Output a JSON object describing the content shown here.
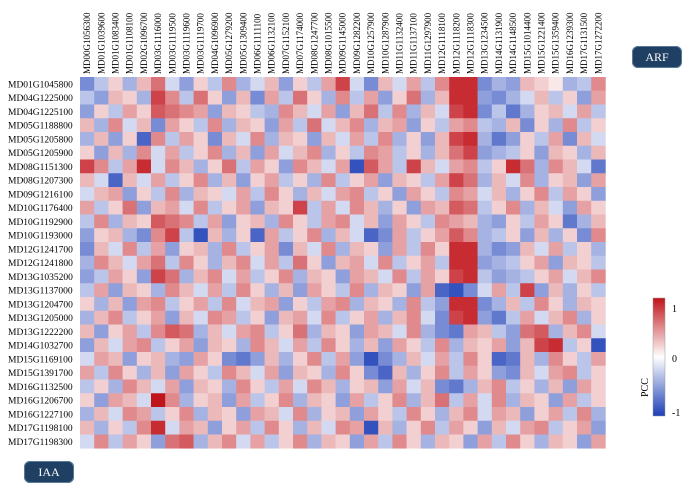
{
  "labels": {
    "arf": "ARF",
    "iaa": "IAA"
  },
  "colors": {
    "negative": "#1d3fb7",
    "zero": "#ffffff",
    "positive": "#c0141b"
  },
  "chart_data": {
    "type": "heatmap",
    "columns": [
      "MD00G1056300",
      "MD01G1039600",
      "MD01G1083400",
      "MD01G1108100",
      "MD02G1096700",
      "MD03G1116000",
      "MD03G1119500",
      "MD03G1119600",
      "MD03G1119700",
      "MD04G1096900",
      "MD05G1279200",
      "MD05G1309400",
      "MD06G1111100",
      "MD06G1132100",
      "MD07G1152100",
      "MD07G1174000",
      "MD08G1247700",
      "MD08G1015500",
      "MD09G1145000",
      "MD09G1282200",
      "MD10G1257900",
      "MD10G1287900",
      "MD11G1132400",
      "MD11G1137100",
      "MD11G1297900",
      "MD12G1118100",
      "MD12G1118200",
      "MD12G1118300",
      "MD13G1234500",
      "MD14G1131900",
      "MD14G1148500",
      "MD15G1014400",
      "MD15G1221400",
      "MD15G1359400",
      "MD16G1239300",
      "MD17G1131500",
      "MD17G1272200"
    ],
    "rows": [
      "MD01G1045800",
      "MD04G1225000",
      "MD04G1225100",
      "MD05G1188800",
      "MD05G1205800",
      "MD05G1205900",
      "MD08G1151300",
      "MD08G1207300",
      "MD09G1216100",
      "MD10G1176400",
      "MD10G1192900",
      "MD10G1193000",
      "MD12G1241700",
      "MD12G1241800",
      "MD13G1035200",
      "MD13G1137000",
      "MD13G1204700",
      "MD13G1205000",
      "MD13G1222200",
      "MD14G1032700",
      "MD15G1169100",
      "MD15G1391700",
      "MD16G1132500",
      "MD16G1206700",
      "MD16G1227100",
      "MD17G1198100",
      "MD17G1198300"
    ],
    "values": [
      [
        -0.6,
        -0.3,
        0.2,
        -0.4,
        0.3,
        0.6,
        -0.2,
        -0.5,
        0.2,
        -0.3,
        0.5,
        -0.4,
        -0.2,
        0.3,
        -0.5,
        0.2,
        -0.3,
        0.4,
        0.8,
        -0.2,
        -0.6,
        0.3,
        -0.2,
        0.4,
        -0.3,
        0.5,
        0.9,
        0.9,
        -0.6,
        -0.4,
        -0.5,
        0.3,
        0.2,
        0.1,
        -0.4,
        -0.3,
        0.5
      ],
      [
        -0.3,
        -0.5,
        0.3,
        0.2,
        -0.4,
        0.8,
        0.5,
        -0.3,
        0.6,
        0.2,
        -0.5,
        0.3,
        -0.6,
        0.4,
        -0.3,
        0.6,
        0.2,
        -0.4,
        0.5,
        -0.3,
        0.4,
        -0.5,
        0.2,
        0.6,
        -0.4,
        0.3,
        0.9,
        0.9,
        -0.5,
        -0.6,
        -0.4,
        -0.2,
        0.3,
        -0.3,
        0.2,
        -0.5,
        0.4
      ],
      [
        -0.5,
        0.2,
        -0.3,
        0.4,
        0.2,
        0.7,
        0.6,
        0.5,
        0.4,
        -0.5,
        0.3,
        0.2,
        -0.3,
        -0.4,
        0.5,
        0.3,
        -0.2,
        0.4,
        -0.5,
        0.3,
        0.6,
        -0.3,
        0.5,
        -0.4,
        0.3,
        -0.2,
        0.8,
        0.9,
        -0.6,
        -0.3,
        -0.7,
        -0.4,
        0.2,
        0.3,
        -0.2,
        0.4,
        -0.3
      ],
      [
        0.3,
        -0.4,
        0.5,
        -0.2,
        0.3,
        -0.6,
        0.4,
        0.2,
        -0.3,
        0.5,
        -0.4,
        0.3,
        0.2,
        -0.5,
        0.4,
        -0.3,
        0.6,
        -0.2,
        0.3,
        0.5,
        -0.4,
        0.3,
        0.4,
        -0.5,
        0.2,
        -0.3,
        0.4,
        0.5,
        -0.3,
        -0.4,
        0.3,
        -0.6,
        0.2,
        -0.4,
        0.5,
        -0.3,
        0.2
      ],
      [
        -0.4,
        0.3,
        -0.5,
        0.2,
        -0.8,
        0.5,
        -0.3,
        0.4,
        0.2,
        -0.6,
        0.3,
        -0.2,
        0.5,
        -0.4,
        0.3,
        0.2,
        -0.5,
        0.3,
        -0.2,
        0.4,
        -0.3,
        0.5,
        -0.4,
        0.2,
        -0.5,
        0.3,
        0.8,
        0.9,
        -0.4,
        -0.7,
        -0.5,
        0.2,
        -0.3,
        0.4,
        -0.6,
        0.3,
        -0.2
      ],
      [
        0.2,
        -0.5,
        0.3,
        -0.4,
        0.5,
        -0.2,
        0.4,
        -0.3,
        0.2,
        0.5,
        -0.4,
        0.3,
        -0.5,
        0.4,
        -0.2,
        0.3,
        0.5,
        -0.4,
        0.2,
        -0.3,
        0.5,
        0.4,
        -0.3,
        0.2,
        -0.4,
        0.3,
        0.6,
        0.8,
        -0.5,
        -0.4,
        -0.3,
        0.2,
        -0.5,
        0.3,
        0.2,
        -0.4,
        0.3
      ],
      [
        0.8,
        0.5,
        -0.3,
        0.4,
        0.9,
        -0.2,
        0.5,
        0.3,
        -0.4,
        0.2,
        0.6,
        -0.3,
        0.4,
        0.2,
        -0.5,
        0.5,
        0.3,
        -0.2,
        0.4,
        -0.9,
        0.7,
        0.4,
        -0.3,
        0.8,
        0.3,
        -0.2,
        0.4,
        0.5,
        -0.3,
        0.2,
        0.9,
        0.6,
        -0.4,
        0.5,
        0.3,
        -0.2,
        -0.7
      ],
      [
        0.3,
        -0.2,
        -0.8,
        0.3,
        -0.2,
        0.4,
        -0.3,
        0.2,
        0.5,
        -0.4,
        0.3,
        -0.5,
        0.2,
        0.4,
        -0.3,
        0.2,
        -0.4,
        0.5,
        -0.3,
        0.2,
        0.4,
        -0.5,
        0.3,
        0.2,
        -0.3,
        0.4,
        0.8,
        0.6,
        -0.4,
        0.3,
        -0.2,
        0.5,
        -0.4,
        0.2,
        0.3,
        -0.5,
        0.4
      ],
      [
        -0.2,
        0.3,
        0.4,
        -0.5,
        0.2,
        -0.3,
        0.5,
        -0.4,
        0.3,
        0.2,
        -0.2,
        0.4,
        -0.3,
        0.5,
        0.2,
        -0.4,
        0.3,
        -0.2,
        0.4,
        0.5,
        -0.3,
        0.2,
        -0.5,
        0.4,
        0.2,
        -0.3,
        0.5,
        0.4,
        -0.2,
        0.3,
        -0.4,
        0.2,
        0.5,
        -0.3,
        0.4,
        0.2,
        -0.5
      ],
      [
        0.4,
        -0.3,
        0.2,
        0.6,
        -0.5,
        0.3,
        0.4,
        -0.2,
        0.5,
        -0.3,
        0.2,
        0.4,
        -0.5,
        0.3,
        0.2,
        0.8,
        -0.3,
        0.4,
        -0.2,
        0.5,
        0.3,
        -0.4,
        0.2,
        -0.5,
        0.4,
        0.3,
        0.7,
        0.6,
        -0.3,
        0.2,
        0.5,
        -0.4,
        0.3,
        -0.2,
        -0.5,
        0.4,
        0.2
      ],
      [
        -0.3,
        0.5,
        -0.4,
        0.3,
        0.2,
        0.7,
        0.6,
        0.5,
        -0.3,
        0.4,
        -0.5,
        0.2,
        0.3,
        -0.4,
        0.5,
        0.2,
        -0.3,
        0.4,
        0.5,
        -0.2,
        0.3,
        -0.5,
        0.4,
        0.2,
        -0.3,
        0.5,
        0.4,
        0.3,
        -0.4,
        -0.5,
        0.2,
        -0.3,
        0.4,
        0.2,
        -0.7,
        -0.4,
        0.3
      ],
      [
        -0.5,
        0.2,
        0.3,
        -0.4,
        -0.6,
        0.5,
        0.8,
        -0.3,
        -0.9,
        0.3,
        -0.4,
        0.2,
        -0.8,
        0.4,
        -0.3,
        0.2,
        0.5,
        -0.4,
        0.3,
        -0.2,
        -0.8,
        -0.6,
        0.4,
        -0.3,
        0.2,
        0.4,
        0.7,
        0.5,
        -0.4,
        -0.3,
        0.2,
        -0.5,
        0.3,
        -0.4,
        0.2,
        -0.6,
        0.5
      ],
      [
        -0.6,
        0.3,
        -0.2,
        0.5,
        -0.3,
        0.4,
        -0.5,
        0.2,
        0.3,
        -0.4,
        0.5,
        -0.3,
        0.2,
        0.4,
        -0.6,
        0.3,
        -0.2,
        0.5,
        -0.4,
        0.3,
        0.2,
        -0.5,
        0.4,
        -0.3,
        0.5,
        0.2,
        0.9,
        0.9,
        -0.4,
        -0.6,
        -0.5,
        0.3,
        -0.2,
        0.4,
        -0.3,
        0.2,
        -0.4
      ],
      [
        -0.4,
        0.5,
        0.3,
        -0.2,
        0.4,
        0.6,
        -0.3,
        0.5,
        0.2,
        -0.4,
        0.3,
        0.5,
        -0.2,
        0.4,
        -0.3,
        0.6,
        0.2,
        -0.5,
        0.3,
        0.4,
        -0.2,
        0.5,
        -0.3,
        0.2,
        0.4,
        -0.3,
        0.9,
        0.9,
        -0.5,
        -0.4,
        -0.3,
        0.2,
        0.4,
        -0.5,
        0.3,
        0.2,
        -0.3
      ],
      [
        -0.5,
        -0.3,
        0.4,
        0.2,
        -0.5,
        0.8,
        0.6,
        -0.4,
        0.3,
        0.5,
        -0.2,
        0.4,
        -0.3,
        0.2,
        0.5,
        -0.4,
        0.3,
        0.2,
        -0.5,
        0.4,
        0.3,
        -0.2,
        0.5,
        -0.3,
        0.4,
        0.2,
        0.8,
        0.9,
        -0.3,
        -0.5,
        -0.4,
        -0.3,
        0.2,
        0.4,
        -0.2,
        0.3,
        0.5
      ],
      [
        -0.3,
        0.4,
        -0.5,
        0.3,
        0.2,
        -0.4,
        0.5,
        0.3,
        -0.2,
        0.4,
        -0.3,
        0.5,
        0.2,
        -0.4,
        0.3,
        -0.5,
        0.4,
        0.2,
        -0.3,
        0.5,
        -0.4,
        0.3,
        0.2,
        -0.5,
        0.4,
        -0.8,
        -0.9,
        -0.6,
        -0.2,
        0.4,
        -0.3,
        0.8,
        -0.5,
        0.3,
        -0.4,
        0.2,
        -0.3
      ],
      [
        0.2,
        -0.4,
        0.3,
        -0.5,
        0.4,
        0.5,
        -0.3,
        0.2,
        0.4,
        -0.3,
        0.5,
        -0.2,
        0.3,
        0.4,
        -0.5,
        0.2,
        -0.3,
        0.4,
        0.5,
        -0.4,
        0.3,
        0.2,
        -0.4,
        0.5,
        -0.3,
        -0.5,
        0.9,
        0.9,
        -0.6,
        -0.4,
        0.3,
        -0.3,
        0.5,
        0.2,
        -0.4,
        0.3,
        0.2
      ],
      [
        -0.4,
        0.3,
        0.5,
        -0.3,
        0.2,
        0.4,
        -0.5,
        0.3,
        -0.2,
        0.5,
        0.4,
        -0.3,
        0.2,
        -0.5,
        0.3,
        0.4,
        -0.2,
        0.5,
        -0.3,
        0.2,
        0.4,
        -0.4,
        0.3,
        0.5,
        -0.2,
        -0.6,
        0.8,
        0.9,
        -0.5,
        -0.7,
        -0.3,
        0.4,
        -0.2,
        0.3,
        0.5,
        -0.4,
        0.2
      ],
      [
        0.3,
        -0.5,
        0.2,
        0.4,
        -0.3,
        0.5,
        0.7,
        0.6,
        -0.4,
        0.3,
        -0.2,
        0.4,
        0.5,
        -0.3,
        0.2,
        0.6,
        -0.4,
        0.3,
        0.2,
        -0.5,
        0.4,
        0.3,
        -0.2,
        0.5,
        -0.4,
        -0.6,
        -0.7,
        0.4,
        0.3,
        -0.3,
        -0.5,
        0.6,
        0.7,
        -0.4,
        0.3,
        0.5,
        -0.2
      ],
      [
        -0.5,
        0.3,
        -0.2,
        0.4,
        0.5,
        -0.3,
        0.2,
        0.4,
        -0.5,
        0.3,
        0.2,
        -0.4,
        0.5,
        0.3,
        -0.2,
        0.4,
        -0.3,
        0.5,
        0.2,
        -0.4,
        0.3,
        -0.5,
        0.4,
        0.2,
        -0.3,
        0.5,
        -0.4,
        0.3,
        0.2,
        0.4,
        -0.5,
        0.3,
        0.8,
        0.9,
        -0.3,
        0.2,
        -0.9
      ],
      [
        -0.2,
        0.4,
        0.3,
        -0.5,
        0.2,
        0.3,
        -0.4,
        -0.5,
        0.4,
        0.2,
        -0.6,
        -0.7,
        -0.5,
        0.3,
        -0.4,
        0.2,
        0.5,
        -0.3,
        0.4,
        -0.5,
        -0.9,
        -0.6,
        -0.4,
        0.3,
        -0.2,
        0.4,
        -0.3,
        0.5,
        0.2,
        -0.8,
        -0.7,
        0.3,
        -0.4,
        0.5,
        0.2,
        -0.3,
        0.4
      ],
      [
        0.4,
        -0.3,
        0.5,
        0.2,
        -0.4,
        0.3,
        -0.5,
        0.4,
        0.2,
        -0.3,
        0.5,
        0.3,
        -0.2,
        0.4,
        -0.5,
        0.3,
        0.2,
        -0.4,
        0.5,
        0.2,
        -0.6,
        -0.8,
        0.3,
        -0.4,
        0.2,
        0.5,
        -0.3,
        0.4,
        0.2,
        -0.5,
        -0.6,
        0.3,
        -0.2,
        0.4,
        0.5,
        -0.3,
        0.2
      ],
      [
        -0.3,
        0.2,
        -0.4,
        0.5,
        0.3,
        -0.2,
        0.4,
        -0.5,
        0.3,
        0.2,
        -0.4,
        0.5,
        0.2,
        -0.3,
        0.4,
        -0.2,
        0.5,
        0.3,
        -0.4,
        0.2,
        0.3,
        -0.5,
        0.4,
        -0.2,
        0.3,
        -0.6,
        -0.7,
        -0.4,
        0.3,
        0.5,
        -0.3,
        0.2,
        -0.4,
        0.3,
        -0.5,
        0.4,
        0.2
      ],
      [
        0.2,
        -0.5,
        0.4,
        0.3,
        -0.2,
        1.0,
        0.5,
        -0.4,
        0.2,
        0.3,
        -0.5,
        0.4,
        -0.3,
        0.2,
        0.5,
        -0.4,
        0.3,
        0.2,
        -0.5,
        0.4,
        -0.3,
        0.2,
        0.5,
        -0.4,
        0.3,
        0.6,
        -0.3,
        0.4,
        -0.2,
        0.5,
        -0.4,
        0.3,
        0.2,
        -0.5,
        0.4,
        -0.3,
        0.2
      ],
      [
        -0.4,
        0.3,
        -0.2,
        0.5,
        0.4,
        -0.3,
        0.2,
        0.5,
        -0.4,
        0.3,
        0.2,
        -0.5,
        0.4,
        0.3,
        -0.2,
        0.5,
        -0.4,
        0.2,
        0.3,
        -0.5,
        0.4,
        0.2,
        -0.3,
        0.5,
        0.2,
        -0.4,
        0.3,
        0.5,
        -0.2,
        0.4,
        0.3,
        -0.5,
        0.2,
        0.4,
        -0.3,
        0.5,
        -0.4
      ],
      [
        0.3,
        -0.4,
        0.2,
        -0.3,
        0.5,
        0.9,
        -0.2,
        0.4,
        0.3,
        -0.5,
        0.2,
        0.4,
        -0.3,
        0.5,
        0.2,
        -0.4,
        0.3,
        -0.2,
        0.5,
        0.4,
        -0.9,
        0.3,
        -0.4,
        0.2,
        0.5,
        -0.3,
        0.4,
        0.2,
        -0.5,
        0.3,
        -0.2,
        0.4,
        0.5,
        -0.3,
        0.2,
        0.4,
        -0.5
      ],
      [
        -0.2,
        0.5,
        -0.3,
        0.4,
        0.2,
        -0.5,
        0.6,
        0.7,
        -0.4,
        0.3,
        0.5,
        -0.2,
        0.4,
        -0.3,
        0.2,
        0.5,
        -0.4,
        0.3,
        0.2,
        -0.5,
        0.4,
        -0.3,
        0.5,
        0.2,
        -0.4,
        0.3,
        0.2,
        -0.5,
        0.4,
        -0.3,
        0.5,
        0.2,
        -0.4,
        0.3,
        0.2,
        -0.5,
        0.4
      ]
    ],
    "legend": {
      "title": "PCC",
      "ticks": [
        1,
        0,
        -1
      ],
      "range": [
        -1,
        1
      ]
    }
  }
}
